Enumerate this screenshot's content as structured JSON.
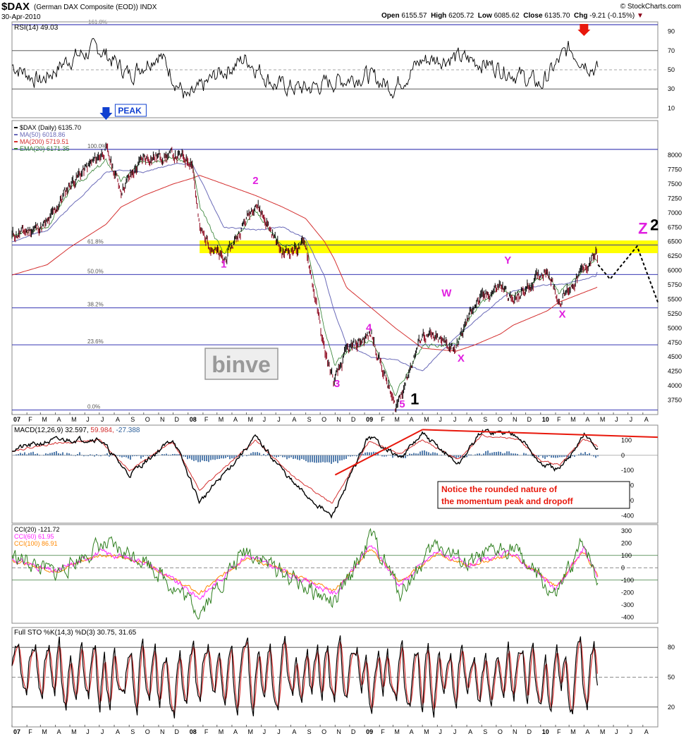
{
  "header": {
    "symbol": "$DAX",
    "description": "(German DAX Composite (EOD))  INDX",
    "brand": "© StockCharts.com",
    "date": "30-Apr-2010",
    "open_label": "Open",
    "open": "6155.57",
    "high_label": "High",
    "high": "6205.72",
    "low_label": "Low",
    "low": "6085.62",
    "close_label": "Close",
    "close": "6135.70",
    "chg_label": "Chg",
    "chg": "-9.21 (-0.15%)"
  },
  "colors": {
    "price": "#000000",
    "down_bar": "#8b0018",
    "ma50": "#6a6ab8",
    "ma200": "#d43030",
    "ema20": "#2f7f2f",
    "fib_line": "#1a1aa8",
    "zone": "#ffff00",
    "wave_label": "#e020e0",
    "macd_hist": "#2c5f9a",
    "cci": "#2f7f1f",
    "cci60": "#ff22ff",
    "cci100": "#ff8800",
    "arrow_red": "#e8180c",
    "arrow_blue": "#1040d0"
  },
  "chart_data": [
    {
      "type": "line",
      "title": "RSI(14) 49.03",
      "indicator": "RSI(14)",
      "last_value": 49.03,
      "y_ticks": [
        90,
        70,
        50,
        30,
        10
      ],
      "reference_levels": [
        70,
        50,
        30
      ],
      "level_label": "161.8%",
      "ylim": [
        0,
        100
      ],
      "x": [
        "2007-01-01",
        "2007-03-01",
        "2007-05-01",
        "2007-07-01",
        "2007-09-01",
        "2007-11-01",
        "2008-01-01",
        "2008-03-01",
        "2008-05-01",
        "2008-07-01",
        "2008-09-01",
        "2008-11-01",
        "2009-01-01",
        "2009-03-01",
        "2009-05-01",
        "2009-07-01",
        "2009-09-01",
        "2009-11-01",
        "2010-01-01",
        "2010-03-01",
        "2010-04-30"
      ],
      "values": [
        55,
        38,
        62,
        72,
        45,
        68,
        18,
        45,
        62,
        34,
        30,
        38,
        45,
        32,
        60,
        63,
        58,
        48,
        34,
        72,
        49
      ],
      "annotations": [
        {
          "kind": "arrow-down",
          "color": "red",
          "x": "2010-04-01"
        }
      ]
    },
    {
      "type": "line",
      "title": "$DAX (Daily) 6135.70",
      "series": [
        {
          "name": "$DAX (Daily) 6135.70",
          "color": "#000000"
        },
        {
          "name": "MA(50) 6018.86",
          "color": "#6a6ab8"
        },
        {
          "name": "MA(200) 5719.51",
          "color": "#d43030"
        },
        {
          "name": "EMA(20) 6171.35",
          "color": "#2f7f2f"
        }
      ],
      "x": [
        "2007-01-01",
        "2007-03-15",
        "2007-05-01",
        "2007-07-15",
        "2007-08-15",
        "2007-10-01",
        "2007-12-01",
        "2008-01-10",
        "2008-01-25",
        "2008-03-15",
        "2008-05-20",
        "2008-07-15",
        "2008-09-01",
        "2008-10-10",
        "2008-10-30",
        "2008-11-25",
        "2009-01-15",
        "2009-03-06",
        "2009-05-01",
        "2009-07-10",
        "2009-08-15",
        "2009-10-10",
        "2009-11-05",
        "2010-01-15",
        "2010-02-08",
        "2010-04-26",
        "2010-04-30"
      ],
      "close": [
        6600,
        6800,
        7500,
        8100,
        7400,
        7950,
        8000,
        7900,
        6700,
        6150,
        7200,
        6300,
        6450,
        4600,
        4050,
        4600,
        4900,
        3600,
        4900,
        4650,
        5400,
        5750,
        5450,
        6050,
        5450,
        6300,
        6135
      ],
      "ma50": [
        6500,
        6700,
        7100,
        7700,
        7750,
        7700,
        7850,
        7850,
        7600,
        6750,
        6700,
        6750,
        6550,
        5900,
        5300,
        4700,
        4500,
        4450,
        4250,
        4850,
        5100,
        5500,
        5650,
        5750,
        5750,
        5900,
        6018
      ],
      "ma200": [
        5920,
        6100,
        6400,
        6800,
        7100,
        7300,
        7500,
        7600,
        7650,
        7500,
        7300,
        7100,
        6900,
        6500,
        6200,
        5700,
        5350,
        5000,
        4650,
        4600,
        4700,
        4900,
        5050,
        5300,
        5450,
        5700,
        5719
      ],
      "ema20": [
        6600,
        6750,
        7400,
        7900,
        7550,
        7900,
        7950,
        7850,
        7100,
        6300,
        7050,
        6400,
        6500,
        5000,
        4350,
        4600,
        4800,
        3850,
        4700,
        4700,
        5300,
        5700,
        5550,
        5950,
        5600,
        6200,
        6171
      ],
      "y_ticks": [
        8000,
        7750,
        7500,
        7250,
        7000,
        6750,
        6500,
        6250,
        6000,
        5750,
        5500,
        5250,
        5000,
        4750,
        4500,
        4250,
        4000,
        3750
      ],
      "ylim": [
        3500,
        8600
      ],
      "fib_levels": [
        {
          "label": "100.0%",
          "value": 8100
        },
        {
          "label": "61.8%",
          "value": 6440
        },
        {
          "label": "50.0%",
          "value": 5930
        },
        {
          "label": "38.2%",
          "value": 5350
        },
        {
          "label": "23.6%",
          "value": 4710
        },
        {
          "label": "0.0%",
          "value": 3580
        }
      ],
      "resistance_zone": [
        6300,
        6520
      ],
      "wave_labels": [
        {
          "text": "1",
          "x": "2008-03-15",
          "y": 6050,
          "color": "magenta"
        },
        {
          "text": "2",
          "x": "2008-05-20",
          "y": 7500,
          "color": "magenta"
        },
        {
          "text": "3",
          "x": "2008-11-05",
          "y": 3980,
          "color": "magenta"
        },
        {
          "text": "4",
          "x": "2009-01-10",
          "y": 4950,
          "color": "magenta"
        },
        {
          "text": "5",
          "x": "2009-03-20",
          "y": 3620,
          "color": "magenta"
        },
        {
          "text": "1",
          "x": "2009-04-15",
          "y": 3680,
          "color": "black"
        },
        {
          "text": "W",
          "x": "2009-06-20",
          "y": 5550,
          "color": "magenta"
        },
        {
          "text": "X",
          "x": "2009-07-20",
          "y": 4420,
          "color": "magenta"
        },
        {
          "text": "Y",
          "x": "2009-10-25",
          "y": 6120,
          "color": "magenta"
        },
        {
          "text": "X",
          "x": "2010-02-15",
          "y": 5180,
          "color": "magenta"
        },
        {
          "text": "Z",
          "x": "2010-08-01",
          "y": 6640,
          "color": "magenta"
        },
        {
          "text": "2",
          "x": "2010-08-25",
          "y": 6700,
          "color": "black"
        }
      ],
      "projection": {
        "x": [
          "2010-04-30",
          "2010-05-25",
          "2010-07-20",
          "2010-09-01"
        ],
        "y": [
          6100,
          5850,
          6420,
          5450
        ]
      },
      "annotations": [
        {
          "text": "PEAK",
          "kind": "arrow-down",
          "color": "blue",
          "x": "2007-07-15"
        }
      ],
      "watermark": "binve"
    },
    {
      "type": "line",
      "title": "MACD(12,26,9) 32.597, 59.984, -27.388",
      "series": [
        {
          "name": "MACD(12,26,9)",
          "last": 32.597,
          "color": "#000000"
        },
        {
          "name": "signal",
          "last": 59.984,
          "color": "#d43030"
        },
        {
          "name": "histogram",
          "last": -27.388,
          "color": "#2c5f9a"
        }
      ],
      "x": [
        "2007-01-01",
        "2007-04-01",
        "2007-07-01",
        "2007-09-01",
        "2007-12-01",
        "2008-01-25",
        "2008-05-20",
        "2008-08-10",
        "2008-10-25",
        "2009-01-10",
        "2009-03-15",
        "2009-05-01",
        "2009-07-15",
        "2009-09-01",
        "2009-11-15",
        "2010-01-01",
        "2010-02-10",
        "2010-04-01",
        "2010-04-30"
      ],
      "macd": [
        40,
        100,
        110,
        -130,
        110,
        -310,
        120,
        -200,
        -410,
        130,
        -20,
        140,
        -60,
        160,
        140,
        -60,
        -100,
        140,
        32.6
      ],
      "signal": [
        30,
        80,
        100,
        -100,
        90,
        -230,
        100,
        -150,
        -320,
        90,
        10,
        100,
        -30,
        130,
        110,
        -40,
        -60,
        110,
        60
      ],
      "y_ticks": [
        100,
        0,
        -100,
        -200,
        -300,
        -400
      ],
      "ylim": [
        -450,
        200
      ],
      "trendlines": [
        {
          "x": [
            "2008-11-01",
            "2009-05-01"
          ],
          "y": [
            -130,
            170
          ]
        },
        {
          "x": [
            "2009-05-01",
            "2010-09-01"
          ],
          "y": [
            170,
            120
          ]
        }
      ],
      "annotation_text": "Notice the rounded nature of the momentum peak and dropoff"
    },
    {
      "type": "line",
      "title": "CCI(20) -121.72",
      "series": [
        {
          "name": "CCI(20) -121.72",
          "last": -121.72,
          "color": "#2f7f1f"
        },
        {
          "name": "CCI(60) 61.95",
          "last": 61.95,
          "color": "#ff22ff"
        },
        {
          "name": "CCI(100) 86.91",
          "last": 86.91,
          "color": "#ff8800"
        }
      ],
      "x": [
        "2007-01-01",
        "2007-04-01",
        "2007-07-01",
        "2007-10-01",
        "2008-01-25",
        "2008-05-01",
        "2008-08-01",
        "2008-11-01",
        "2009-01-15",
        "2009-03-15",
        "2009-06-01",
        "2009-08-01",
        "2009-11-01",
        "2010-02-01",
        "2010-04-01",
        "2010-04-30"
      ],
      "values": [
        100,
        -50,
        180,
        80,
        -350,
        150,
        -80,
        -300,
        260,
        -200,
        200,
        20,
        180,
        -250,
        220,
        -120
      ],
      "y_ticks": [
        300,
        200,
        100,
        0,
        -100,
        -200,
        -300,
        -400
      ],
      "reference_levels": [
        100,
        0,
        -100
      ],
      "ylim": [
        -450,
        350
      ]
    },
    {
      "type": "line",
      "title": "Full STO %K(14,3) %D(3) 30.75, 31.65",
      "series": [
        {
          "name": "%K(14,3)",
          "last": 30.75,
          "color": "#000000"
        },
        {
          "name": "%D(3)",
          "last": 31.65,
          "color": "#d43030"
        }
      ],
      "y_ticks": [
        80,
        50,
        20
      ],
      "reference_levels": [
        80,
        50,
        20
      ],
      "ylim": [
        0,
        100
      ]
    }
  ],
  "x_axis": {
    "ticks": [
      {
        "label": "07",
        "date": "2007-01-01",
        "bold": true
      },
      {
        "label": "F",
        "date": "2007-02-01"
      },
      {
        "label": "M",
        "date": "2007-03-01"
      },
      {
        "label": "A",
        "date": "2007-04-01"
      },
      {
        "label": "M",
        "date": "2007-05-01"
      },
      {
        "label": "J",
        "date": "2007-06-01"
      },
      {
        "label": "J",
        "date": "2007-07-01"
      },
      {
        "label": "A",
        "date": "2007-08-01"
      },
      {
        "label": "S",
        "date": "2007-09-01"
      },
      {
        "label": "O",
        "date": "2007-10-01"
      },
      {
        "label": "N",
        "date": "2007-11-01"
      },
      {
        "label": "D",
        "date": "2007-12-01"
      },
      {
        "label": "08",
        "date": "2008-01-01",
        "bold": true
      },
      {
        "label": "F",
        "date": "2008-02-01"
      },
      {
        "label": "M",
        "date": "2008-03-01"
      },
      {
        "label": "A",
        "date": "2008-04-01"
      },
      {
        "label": "M",
        "date": "2008-05-01"
      },
      {
        "label": "J",
        "date": "2008-06-01"
      },
      {
        "label": "J",
        "date": "2008-07-01"
      },
      {
        "label": "A",
        "date": "2008-08-01"
      },
      {
        "label": "S",
        "date": "2008-09-01"
      },
      {
        "label": "O",
        "date": "2008-10-01"
      },
      {
        "label": "N",
        "date": "2008-11-01"
      },
      {
        "label": "D",
        "date": "2008-12-01"
      },
      {
        "label": "09",
        "date": "2009-01-01",
        "bold": true
      },
      {
        "label": "F",
        "date": "2009-02-01"
      },
      {
        "label": "M",
        "date": "2009-03-01"
      },
      {
        "label": "A",
        "date": "2009-04-01"
      },
      {
        "label": "M",
        "date": "2009-05-01"
      },
      {
        "label": "J",
        "date": "2009-06-01"
      },
      {
        "label": "J",
        "date": "2009-07-01"
      },
      {
        "label": "A",
        "date": "2009-08-01"
      },
      {
        "label": "S",
        "date": "2009-09-01"
      },
      {
        "label": "O",
        "date": "2009-10-01"
      },
      {
        "label": "N",
        "date": "2009-11-01"
      },
      {
        "label": "D",
        "date": "2009-12-01"
      },
      {
        "label": "10",
        "date": "2010-01-01",
        "bold": true
      },
      {
        "label": "F",
        "date": "2010-02-01"
      },
      {
        "label": "M",
        "date": "2010-03-01"
      },
      {
        "label": "A",
        "date": "2010-04-01"
      },
      {
        "label": "M",
        "date": "2010-05-01"
      },
      {
        "label": "J",
        "date": "2010-06-01"
      },
      {
        "label": "J",
        "date": "2010-07-01"
      },
      {
        "label": "A",
        "date": "2010-08-01"
      }
    ]
  }
}
